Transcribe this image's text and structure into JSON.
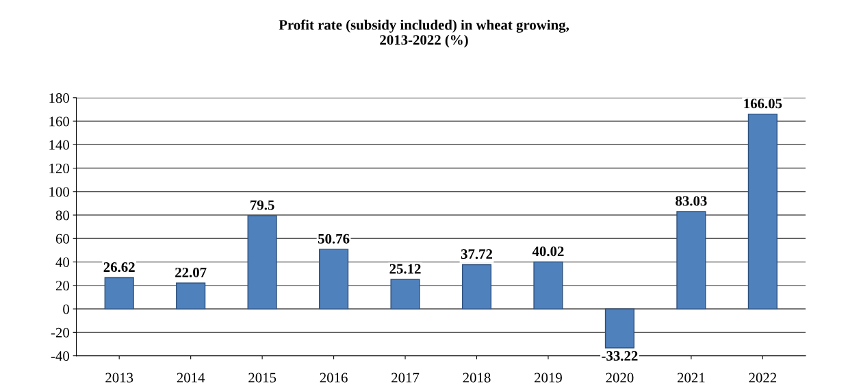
{
  "chart_data": {
    "type": "bar",
    "title": "Profit rate (subsidy included) in wheat growing,\n2013-2022 (%)",
    "categories": [
      "2013",
      "2014",
      "2015",
      "2016",
      "2017",
      "2018",
      "2019",
      "2020",
      "2021",
      "2022"
    ],
    "values": [
      26.62,
      22.07,
      79.5,
      50.76,
      25.12,
      37.72,
      40.02,
      -33.22,
      83.03,
      166.05
    ],
    "color": "#4f81bd",
    "ylim": [
      -40,
      180
    ],
    "yticks": [
      -40,
      -20,
      0,
      20,
      40,
      60,
      80,
      100,
      120,
      140,
      160,
      180
    ],
    "grid": "y",
    "data_labels": true
  }
}
